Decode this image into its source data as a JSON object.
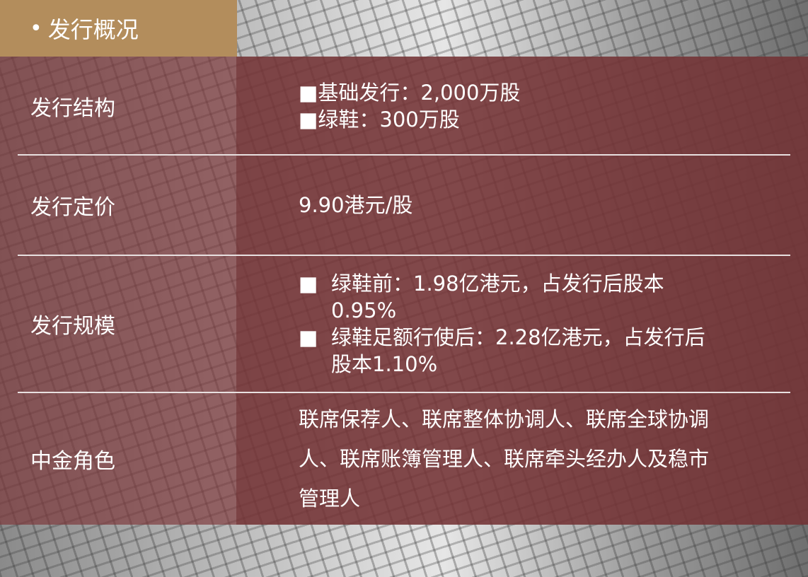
{
  "header": {
    "bullet": "•",
    "title": "发行概况"
  },
  "rows": [
    {
      "label": "发行结构",
      "items": [
        "■基础发行：2,000万股",
        "■绿鞋：300万股"
      ]
    },
    {
      "label": "发行定价",
      "value": "9.90港元/股"
    },
    {
      "label": "发行规模",
      "bullets": [
        {
          "marker": "■",
          "text": "绿鞋前：1.98亿港元，占发行后股本0.95%"
        },
        {
          "marker": "■",
          "text": "绿鞋足额行使后：2.28亿港元，占发行后股本1.10%"
        }
      ]
    },
    {
      "label": "中金角色",
      "value": "联席保荐人、联席整体协调人、联席全球协调人、联席账簿管理人、联席牵头经办人及稳市管理人"
    }
  ],
  "colors": {
    "header": "#b38d5c",
    "table": "#733234"
  }
}
